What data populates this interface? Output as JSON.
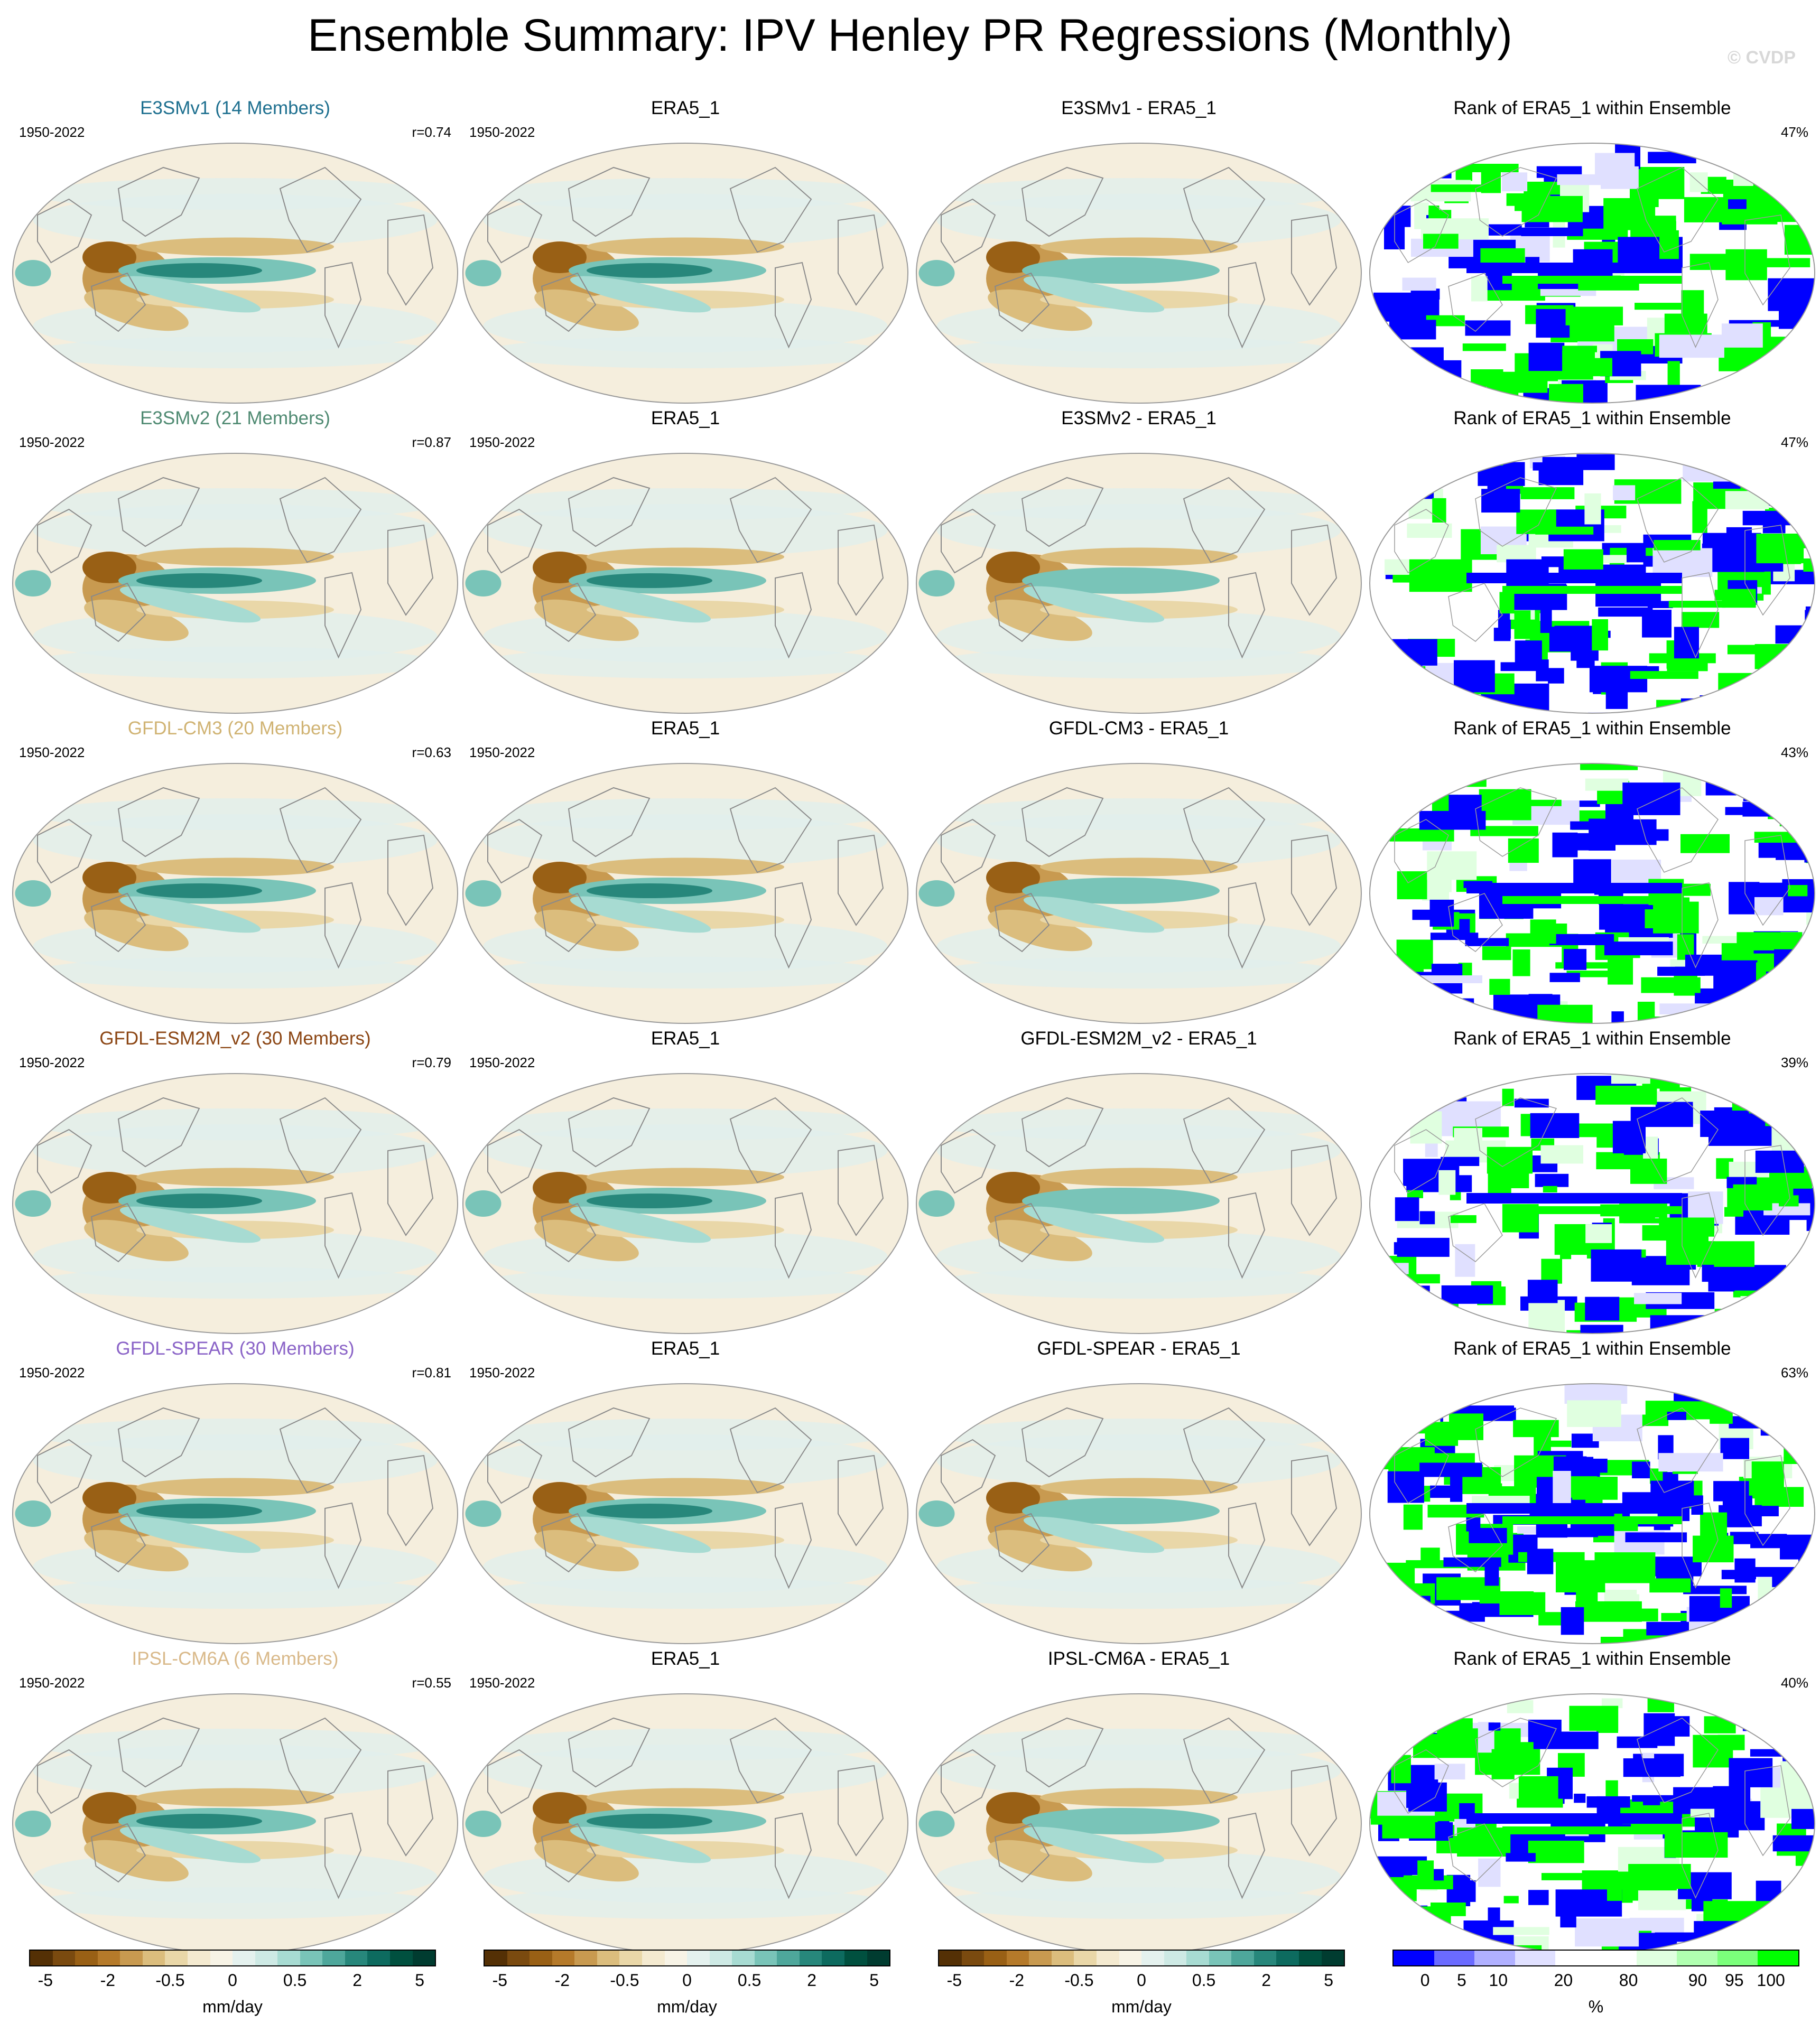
{
  "title": "Ensemble Summary: IPV Henley PR Regressions (Monthly)",
  "copyright": "© CVDP",
  "colors": {
    "brown_teal_scale": [
      "#543005",
      "#7a4a0f",
      "#996015",
      "#b57a2a",
      "#c89a50",
      "#dbbd7d",
      "#e9d7a8",
      "#f4ead0",
      "#f7f3e6",
      "#e4f1ee",
      "#cde9e4",
      "#a7dbd2",
      "#79c4b8",
      "#4ea79b",
      "#27877b",
      "#0d6b5f",
      "#00503f",
      "#003c30"
    ],
    "rank_scale": [
      "#0000ff",
      "#6b6bff",
      "#b0b0ff",
      "#e0e0ff",
      "#ffffff",
      "#ffffff",
      "#e0ffe0",
      "#b0ffb0",
      "#7bff7b",
      "#00ff00"
    ],
    "model_title_colors": {
      "E3SMv1": "#1d6f8f",
      "E3SMv2": "#4f8a72",
      "GFDL-CM3": "#d0b373",
      "GFDL-ESM2M_v2": "#8b4513",
      "GFDL-SPEAR": "#8a63c7",
      "IPSL-CM6A": "#d9b98a"
    }
  },
  "rows": [
    {
      "model_title": "E3SMv1 (14 Members)",
      "model_color": "#1d6f8f",
      "years": "1950-2022",
      "r": "r=0.74",
      "obs_title": "ERA5_1",
      "obs_years": "1950-2022",
      "diff_title": "E3SMv1 - ERA5_1",
      "rank_title": "Rank of ERA5_1 within Ensemble",
      "rank_pct": "47%"
    },
    {
      "model_title": "E3SMv2 (21 Members)",
      "model_color": "#4f8a72",
      "years": "1950-2022",
      "r": "r=0.87",
      "obs_title": "ERA5_1",
      "obs_years": "1950-2022",
      "diff_title": "E3SMv2 - ERA5_1",
      "rank_title": "Rank of ERA5_1 within Ensemble",
      "rank_pct": "47%"
    },
    {
      "model_title": "GFDL-CM3 (20 Members)",
      "model_color": "#d0b373",
      "years": "1950-2022",
      "r": "r=0.63",
      "obs_title": "ERA5_1",
      "obs_years": "1950-2022",
      "diff_title": "GFDL-CM3 - ERA5_1",
      "rank_title": "Rank of ERA5_1 within Ensemble",
      "rank_pct": "43%"
    },
    {
      "model_title": "GFDL-ESM2M_v2 (30 Members)",
      "model_color": "#8b4513",
      "years": "1950-2022",
      "r": "r=0.79",
      "obs_title": "ERA5_1",
      "obs_years": "1950-2022",
      "diff_title": "GFDL-ESM2M_v2 - ERA5_1",
      "rank_title": "Rank of ERA5_1 within Ensemble",
      "rank_pct": "39%"
    },
    {
      "model_title": "GFDL-SPEAR (30 Members)",
      "model_color": "#8a63c7",
      "years": "1950-2022",
      "r": "r=0.81",
      "obs_title": "ERA5_1",
      "obs_years": "1950-2022",
      "diff_title": "GFDL-SPEAR - ERA5_1",
      "rank_title": "Rank of ERA5_1 within Ensemble",
      "rank_pct": "63%"
    },
    {
      "model_title": "IPSL-CM6A (6 Members)",
      "model_color": "#d9b98a",
      "years": "1950-2022",
      "r": "r=0.55",
      "obs_title": "ERA5_1",
      "obs_years": "1950-2022",
      "diff_title": "IPSL-CM6A - ERA5_1",
      "rank_title": "Rank of ERA5_1 within Ensemble",
      "rank_pct": "40%"
    }
  ],
  "colorbars": [
    {
      "ticks": [
        "-5",
        "-2",
        "-0.5",
        "0",
        "0.5",
        "2",
        "5"
      ],
      "unit": "mm/day"
    },
    {
      "ticks": [
        "-5",
        "-2",
        "-0.5",
        "0",
        "0.5",
        "2",
        "5"
      ],
      "unit": "mm/day"
    },
    {
      "ticks": [
        "-5",
        "-2",
        "-0.5",
        "0",
        "0.5",
        "2",
        "5"
      ],
      "unit": "mm/day"
    },
    {
      "ticks": [
        "0",
        "5",
        "10",
        "20",
        "80",
        "90",
        "95",
        "100"
      ],
      "unit": "%"
    }
  ]
}
